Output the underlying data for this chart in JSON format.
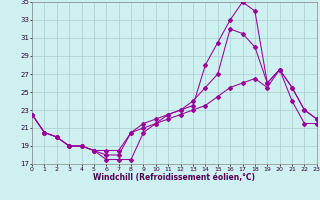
{
  "xlabel": "Windchill (Refroidissement éolien,°C)",
  "bg_color": "#cff0f0",
  "grid_color": "#aacccc",
  "line_color": "#990099",
  "xlim": [
    0,
    23
  ],
  "ylim": [
    17,
    35
  ],
  "yticks": [
    17,
    19,
    21,
    23,
    25,
    27,
    29,
    31,
    33,
    35
  ],
  "xticks": [
    0,
    1,
    2,
    3,
    4,
    5,
    6,
    7,
    8,
    9,
    10,
    11,
    12,
    13,
    14,
    15,
    16,
    17,
    18,
    19,
    20,
    21,
    22,
    23
  ],
  "line1_x": [
    0,
    1,
    2,
    3,
    4,
    5,
    6,
    7,
    8,
    9,
    10,
    11,
    12,
    13,
    14,
    15,
    16,
    17,
    18,
    19,
    20,
    21,
    22,
    23
  ],
  "line1_y": [
    22.5,
    20.5,
    20,
    19,
    19,
    18.5,
    17.5,
    17.5,
    17.5,
    20.5,
    21.5,
    22.5,
    23,
    23.5,
    28,
    30.5,
    33,
    35,
    34,
    26,
    27.5,
    25.5,
    23,
    22
  ],
  "line2_x": [
    0,
    1,
    2,
    3,
    4,
    5,
    6,
    7,
    8,
    9,
    10,
    11,
    12,
    13,
    14,
    15,
    16,
    17,
    18,
    19,
    20,
    21,
    22,
    23
  ],
  "line2_y": [
    22.5,
    20.5,
    20,
    19,
    19,
    18.5,
    18,
    18,
    20.5,
    21.5,
    22,
    22.5,
    23,
    24,
    25.5,
    27,
    32,
    31.5,
    30,
    26,
    27.5,
    25.5,
    23,
    22
  ],
  "line3_x": [
    0,
    1,
    2,
    3,
    4,
    5,
    6,
    7,
    8,
    9,
    10,
    11,
    12,
    13,
    14,
    15,
    16,
    17,
    18,
    19,
    20,
    21,
    22,
    23
  ],
  "line3_y": [
    22.5,
    20.5,
    20,
    19,
    19,
    18.5,
    18.5,
    18.5,
    20.5,
    21,
    21.5,
    22,
    22.5,
    23,
    23.5,
    24.5,
    25.5,
    26,
    26.5,
    25.5,
    27.5,
    24,
    21.5,
    21.5
  ]
}
